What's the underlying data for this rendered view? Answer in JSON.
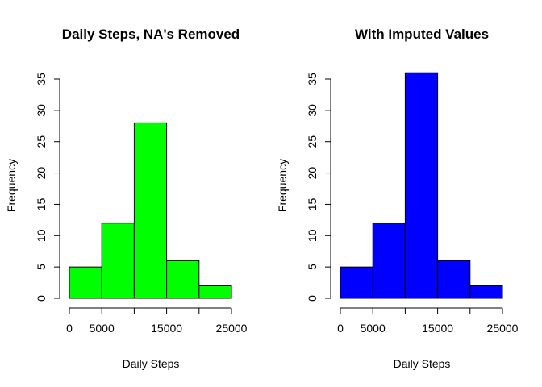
{
  "chart_data": [
    {
      "type": "bar",
      "title": "Daily Steps, NA's Removed",
      "xlabel": "Daily Steps",
      "ylabel": "Frequency",
      "bar_color": "#00ff00",
      "xlim": [
        0,
        25000
      ],
      "ylim": [
        0,
        35
      ],
      "bins": [
        {
          "start": 0,
          "end": 5000,
          "count": 5
        },
        {
          "start": 5000,
          "end": 10000,
          "count": 12
        },
        {
          "start": 10000,
          "end": 15000,
          "count": 28
        },
        {
          "start": 15000,
          "end": 20000,
          "count": 6
        },
        {
          "start": 20000,
          "end": 25000,
          "count": 2
        }
      ],
      "x_ticks": [
        0,
        5000,
        10000,
        15000,
        20000,
        25000
      ],
      "x_tick_labels": [
        "0",
        "5000",
        "",
        "15000",
        "",
        "25000"
      ],
      "y_ticks": [
        0,
        5,
        10,
        15,
        20,
        25,
        30,
        35
      ],
      "y_tick_labels": [
        "0",
        "5",
        "10",
        "15",
        "20",
        "25",
        "30",
        "35"
      ]
    },
    {
      "type": "bar",
      "title": "With Imputed Values",
      "xlabel": "Daily Steps",
      "ylabel": "Frequency",
      "bar_color": "#0000ff",
      "xlim": [
        0,
        25000
      ],
      "ylim": [
        0,
        35
      ],
      "bins": [
        {
          "start": 0,
          "end": 5000,
          "count": 5
        },
        {
          "start": 5000,
          "end": 10000,
          "count": 12
        },
        {
          "start": 10000,
          "end": 15000,
          "count": 36
        },
        {
          "start": 15000,
          "end": 20000,
          "count": 6
        },
        {
          "start": 20000,
          "end": 25000,
          "count": 2
        }
      ],
      "x_ticks": [
        0,
        5000,
        10000,
        15000,
        20000,
        25000
      ],
      "x_tick_labels": [
        "0",
        "5000",
        "",
        "15000",
        "",
        "25000"
      ],
      "y_ticks": [
        0,
        5,
        10,
        15,
        20,
        25,
        30,
        35
      ],
      "y_tick_labels": [
        "0",
        "5",
        "10",
        "15",
        "20",
        "25",
        "30",
        "35"
      ]
    }
  ]
}
